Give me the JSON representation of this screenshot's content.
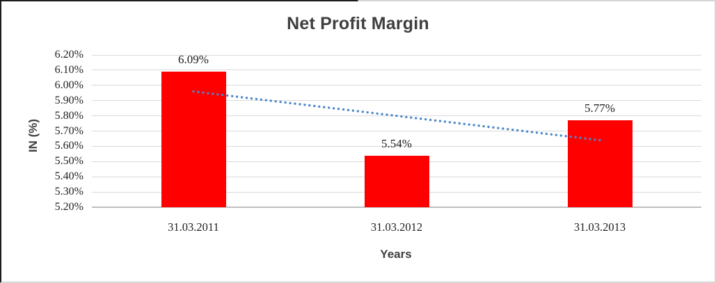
{
  "chart_data": {
    "type": "bar",
    "title": "Net Profit Margin",
    "categories": [
      "31.03.2011",
      "31.03.2012",
      "31.03.2013"
    ],
    "values": [
      6.09,
      5.54,
      5.77
    ],
    "value_labels": [
      "6.09%",
      "5.54%",
      "5.77%"
    ],
    "xlabel": "Years",
    "ylabel": "IN (%)",
    "ylim": [
      5.2,
      6.2
    ],
    "ytick_step": 0.1,
    "ytick_labels": [
      "6.20%",
      "6.10%",
      "6.00%",
      "5.90%",
      "5.80%",
      "5.70%",
      "5.60%",
      "5.50%",
      "5.40%",
      "5.30%",
      "5.20%"
    ],
    "grid": true,
    "legend": false,
    "colors": {
      "bar": "#ff0000",
      "trendline": "#4a86c8",
      "gridline": "#d9d9d9",
      "axis_line": "#bfbfbf",
      "tick_text": "#1f1f1f",
      "heading_text": "#3f3f3f"
    },
    "trendline": {
      "type": "linear",
      "style": "dotted",
      "start_value": 5.96,
      "end_value": 5.64
    }
  }
}
